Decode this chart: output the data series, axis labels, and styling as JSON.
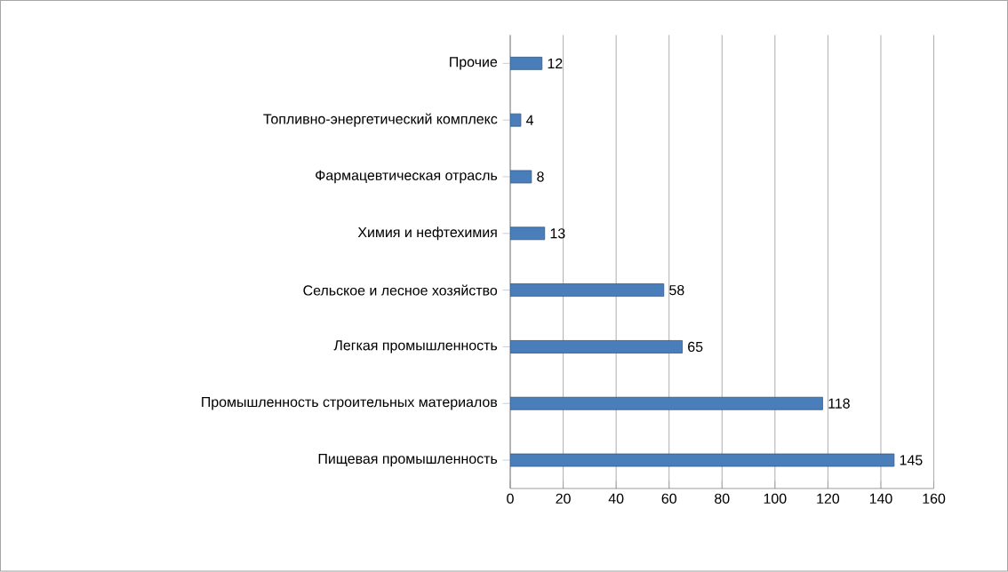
{
  "chart_data": {
    "type": "bar",
    "orientation": "horizontal",
    "categories": [
      "Прочие",
      "Топливно-энергетический комплекс",
      "Фармацевтическая отрасль",
      "Химия и нефтехимия",
      "Сельское и лесное хозяйство",
      "Легкая промышленность",
      "Промышленность строительных материалов",
      "Пищевая промышленность"
    ],
    "values": [
      12,
      4,
      8,
      13,
      58,
      65,
      118,
      145
    ],
    "color": "#4a7ebb",
    "xlim": [
      0,
      160
    ],
    "xticks": [
      0,
      20,
      40,
      60,
      80,
      100,
      120,
      140,
      160
    ],
    "grid": "x",
    "data_labels": true
  }
}
